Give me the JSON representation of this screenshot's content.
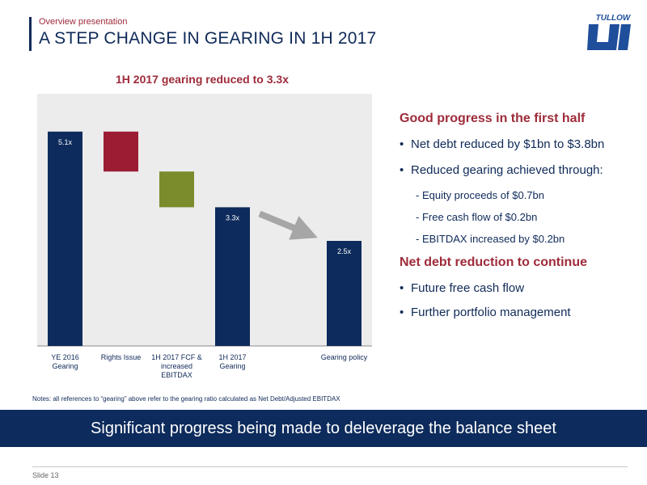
{
  "header": {
    "subtitle": "Overview presentation",
    "title": "A STEP CHANGE IN GEARING IN 1H 2017",
    "logo_text": "TULLOW"
  },
  "chart_data": {
    "type": "bar",
    "subtype": "waterfall",
    "title": "1H 2017 gearing reduced to 3.3x",
    "xlabel": "",
    "ylabel": "",
    "categories": [
      "YE 2016 Gearing",
      "Rights Issue",
      "1H 2017 FCF & increased EBITDAX",
      "1H 2017 Gearing",
      "",
      "Gearing policy"
    ],
    "category_lines": [
      [
        "YE 2016",
        "Gearing"
      ],
      [
        "Rights Issue"
      ],
      [
        "1H 2017 FCF &",
        "increased",
        "EBITDAX"
      ],
      [
        "1H 2017",
        "Gearing"
      ],
      [
        ""
      ],
      [
        "Gearing policy"
      ]
    ],
    "bars": [
      {
        "category": "YE 2016 Gearing",
        "base": 0,
        "top": 5.1,
        "kind": "total",
        "label": "5.1x",
        "color": "#0d2b5c"
      },
      {
        "category": "Rights Issue",
        "base": 4.15,
        "top": 5.1,
        "kind": "decrease",
        "label": "",
        "color": "#9b1c33"
      },
      {
        "category": "1H 2017 FCF & increased EBITDAX",
        "base": 3.3,
        "top": 4.15,
        "kind": "decrease",
        "label": "",
        "color": "#7a8c2c"
      },
      {
        "category": "1H 2017 Gearing",
        "base": 0,
        "top": 3.3,
        "kind": "total",
        "label": "3.3x",
        "color": "#0d2b5c"
      },
      {
        "category": "",
        "base": null,
        "top": null,
        "kind": "empty",
        "label": "",
        "color": ""
      },
      {
        "category": "Gearing policy",
        "base": 0,
        "top": 2.5,
        "kind": "total",
        "label": "2.5x",
        "color": "#0d2b5c"
      }
    ],
    "ylim": [
      0,
      6
    ],
    "arrow": {
      "from_category": "1H 2017 Gearing",
      "to_category": "Gearing policy",
      "color": "#a6a6a6"
    },
    "plot_background": "#ececec",
    "grid": false,
    "legend": "none"
  },
  "right": {
    "heading1": "Good progress in the first half",
    "bullets1": [
      "Net debt reduced by $1bn to $3.8bn",
      "Reduced gearing achieved through:"
    ],
    "subbullets": [
      "- Equity proceeds of $0.7bn",
      "- Free cash flow of $0.2bn",
      "- EBITDAX increased by $0.2bn"
    ],
    "heading2": "Net debt reduction to continue",
    "bullets2": [
      "Future free cash flow",
      "Further portfolio management"
    ]
  },
  "notes": "Notes:  all references to “gearing” above refer to the gearing ratio calculated as Net Debt/Adjusted EBITDAX",
  "banner": "Significant progress being made to deleverage the balance sheet",
  "footer": {
    "slide": "Slide 13"
  }
}
